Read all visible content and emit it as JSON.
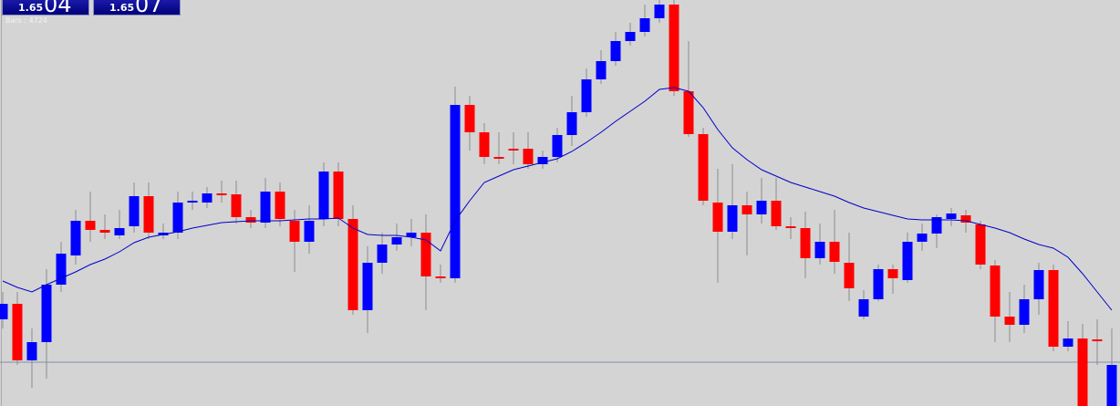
{
  "panels": [
    {
      "prefix": "1.65",
      "value": "04"
    },
    {
      "prefix": "1.65",
      "value": "07"
    }
  ],
  "bars_label": "Bars : 4724",
  "chart_data": {
    "type": "candlestick",
    "ylim": [
      0,
      445
    ],
    "up_color": "#0000ff",
    "down_color": "#ff0000",
    "wick_color": "#8c8c8c",
    "price_line": 48,
    "price_line_color": "#7f8fa8",
    "open": [
      95,
      112,
      50,
      70,
      133,
      165,
      203,
      193,
      187,
      197,
      230,
      187,
      190,
      223,
      223,
      233,
      232,
      207,
      201,
      235,
      203,
      180,
      205,
      257,
      205,
      105,
      157,
      177,
      185,
      190,
      142,
      140,
      330,
      300,
      273,
      282,
      282,
      265,
      273,
      297,
      322,
      358,
      378,
      400,
      410,
      425,
      440,
      345,
      298,
      223,
      191,
      220,
      210,
      225,
      197,
      195,
      162,
      180,
      157,
      98,
      117,
      150,
      138,
      180,
      189,
      205,
      209,
      199,
      154,
      98,
      89,
      117,
      149,
      65,
      74,
      73,
      0
    ],
    "high": [
      125,
      125,
      85,
      150,
      180,
      215,
      235,
      210,
      215,
      245,
      245,
      200,
      235,
      235,
      240,
      247,
      247,
      215,
      250,
      245,
      215,
      220,
      267,
      267,
      220,
      175,
      190,
      200,
      205,
      210,
      155,
      350,
      340,
      310,
      300,
      300,
      300,
      280,
      305,
      340,
      370,
      390,
      410,
      420,
      440,
      445,
      445,
      400,
      305,
      260,
      265,
      235,
      250,
      250,
      207,
      213,
      200,
      215,
      190,
      127,
      155,
      155,
      190,
      200,
      210,
      217,
      215,
      203,
      160,
      125,
      133,
      157,
      155,
      93,
      90,
      95,
      85
    ],
    "low": [
      85,
      45,
      20,
      30,
      125,
      155,
      180,
      183,
      183,
      190,
      183,
      183,
      183,
      215,
      217,
      223,
      200,
      195,
      195,
      197,
      147,
      167,
      197,
      197,
      100,
      80,
      145,
      170,
      175,
      105,
      135,
      135,
      280,
      265,
      265,
      265,
      260,
      260,
      267,
      285,
      317,
      353,
      373,
      395,
      405,
      420,
      340,
      295,
      220,
      135,
      183,
      165,
      200,
      193,
      183,
      140,
      155,
      145,
      115,
      95,
      115,
      123,
      135,
      170,
      173,
      197,
      190,
      150,
      70,
      70,
      80,
      100,
      60,
      60,
      0,
      45,
      0
    ],
    "close": [
      112,
      50,
      70,
      133,
      167,
      203,
      193,
      190,
      195,
      230,
      190,
      190,
      223,
      225,
      233,
      231,
      207,
      201,
      235,
      205,
      180,
      203,
      257,
      205,
      105,
      157,
      177,
      185,
      190,
      142,
      140,
      330,
      300,
      273,
      271,
      280,
      265,
      273,
      297,
      322,
      358,
      378,
      400,
      410,
      425,
      440,
      345,
      298,
      225,
      191,
      220,
      210,
      225,
      197,
      195,
      162,
      180,
      158,
      129,
      117,
      150,
      140,
      180,
      189,
      207,
      211,
      201,
      155,
      98,
      89,
      117,
      149,
      65,
      74,
      0,
      71,
      45
    ],
    "ma": {
      "color": "#0000c8",
      "values": [
        137,
        130,
        125,
        133,
        140,
        147,
        155,
        161,
        169,
        179,
        185,
        188,
        191,
        195,
        198,
        201,
        202,
        203,
        203,
        203,
        204,
        205,
        205,
        206,
        195,
        188,
        187,
        187,
        185,
        182,
        170,
        203,
        225,
        245,
        252,
        259,
        263,
        267,
        271,
        279,
        289,
        300,
        312,
        323,
        334,
        347,
        349,
        345,
        327,
        303,
        283,
        270,
        259,
        252,
        245,
        240,
        235,
        230,
        223,
        217,
        213,
        209,
        205,
        204,
        204,
        204,
        203,
        199,
        195,
        190,
        183,
        177,
        173,
        163,
        145,
        125,
        105
      ]
    }
  }
}
